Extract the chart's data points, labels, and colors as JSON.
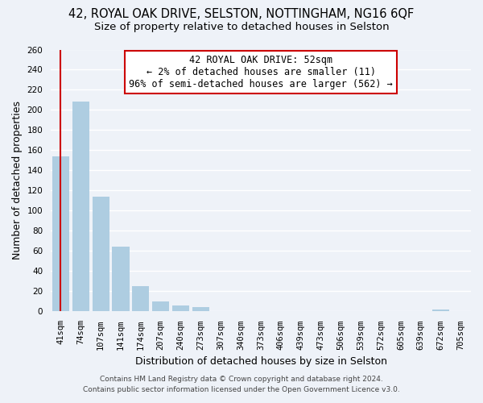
{
  "title": "42, ROYAL OAK DRIVE, SELSTON, NOTTINGHAM, NG16 6QF",
  "subtitle": "Size of property relative to detached houses in Selston",
  "xlabel": "Distribution of detached houses by size in Selston",
  "ylabel": "Number of detached properties",
  "bar_labels": [
    "41sqm",
    "74sqm",
    "107sqm",
    "141sqm",
    "174sqm",
    "207sqm",
    "240sqm",
    "273sqm",
    "307sqm",
    "340sqm",
    "373sqm",
    "406sqm",
    "439sqm",
    "473sqm",
    "506sqm",
    "539sqm",
    "572sqm",
    "605sqm",
    "639sqm",
    "672sqm",
    "705sqm"
  ],
  "bar_values": [
    154,
    208,
    114,
    64,
    25,
    10,
    6,
    4,
    0,
    0,
    0,
    0,
    0,
    0,
    0,
    0,
    0,
    0,
    0,
    2,
    0
  ],
  "bar_color": "#aecde1",
  "annotation_title": "42 ROYAL OAK DRIVE: 52sqm",
  "annotation_line1": "← 2% of detached houses are smaller (11)",
  "annotation_line2": "96% of semi-detached houses are larger (562) →",
  "annotation_box_color": "#ffffff",
  "annotation_box_edge": "#cc0000",
  "highlight_line_color": "#cc0000",
  "ylim": [
    0,
    260
  ],
  "yticks": [
    0,
    20,
    40,
    60,
    80,
    100,
    120,
    140,
    160,
    180,
    200,
    220,
    240,
    260
  ],
  "footer1": "Contains HM Land Registry data © Crown copyright and database right 2024.",
  "footer2": "Contains public sector information licensed under the Open Government Licence v3.0.",
  "background_color": "#eef2f8",
  "grid_color": "#ffffff",
  "title_fontsize": 10.5,
  "subtitle_fontsize": 9.5,
  "axis_label_fontsize": 9,
  "tick_fontsize": 7.5,
  "annotation_fontsize": 8.5,
  "footer_fontsize": 6.5
}
